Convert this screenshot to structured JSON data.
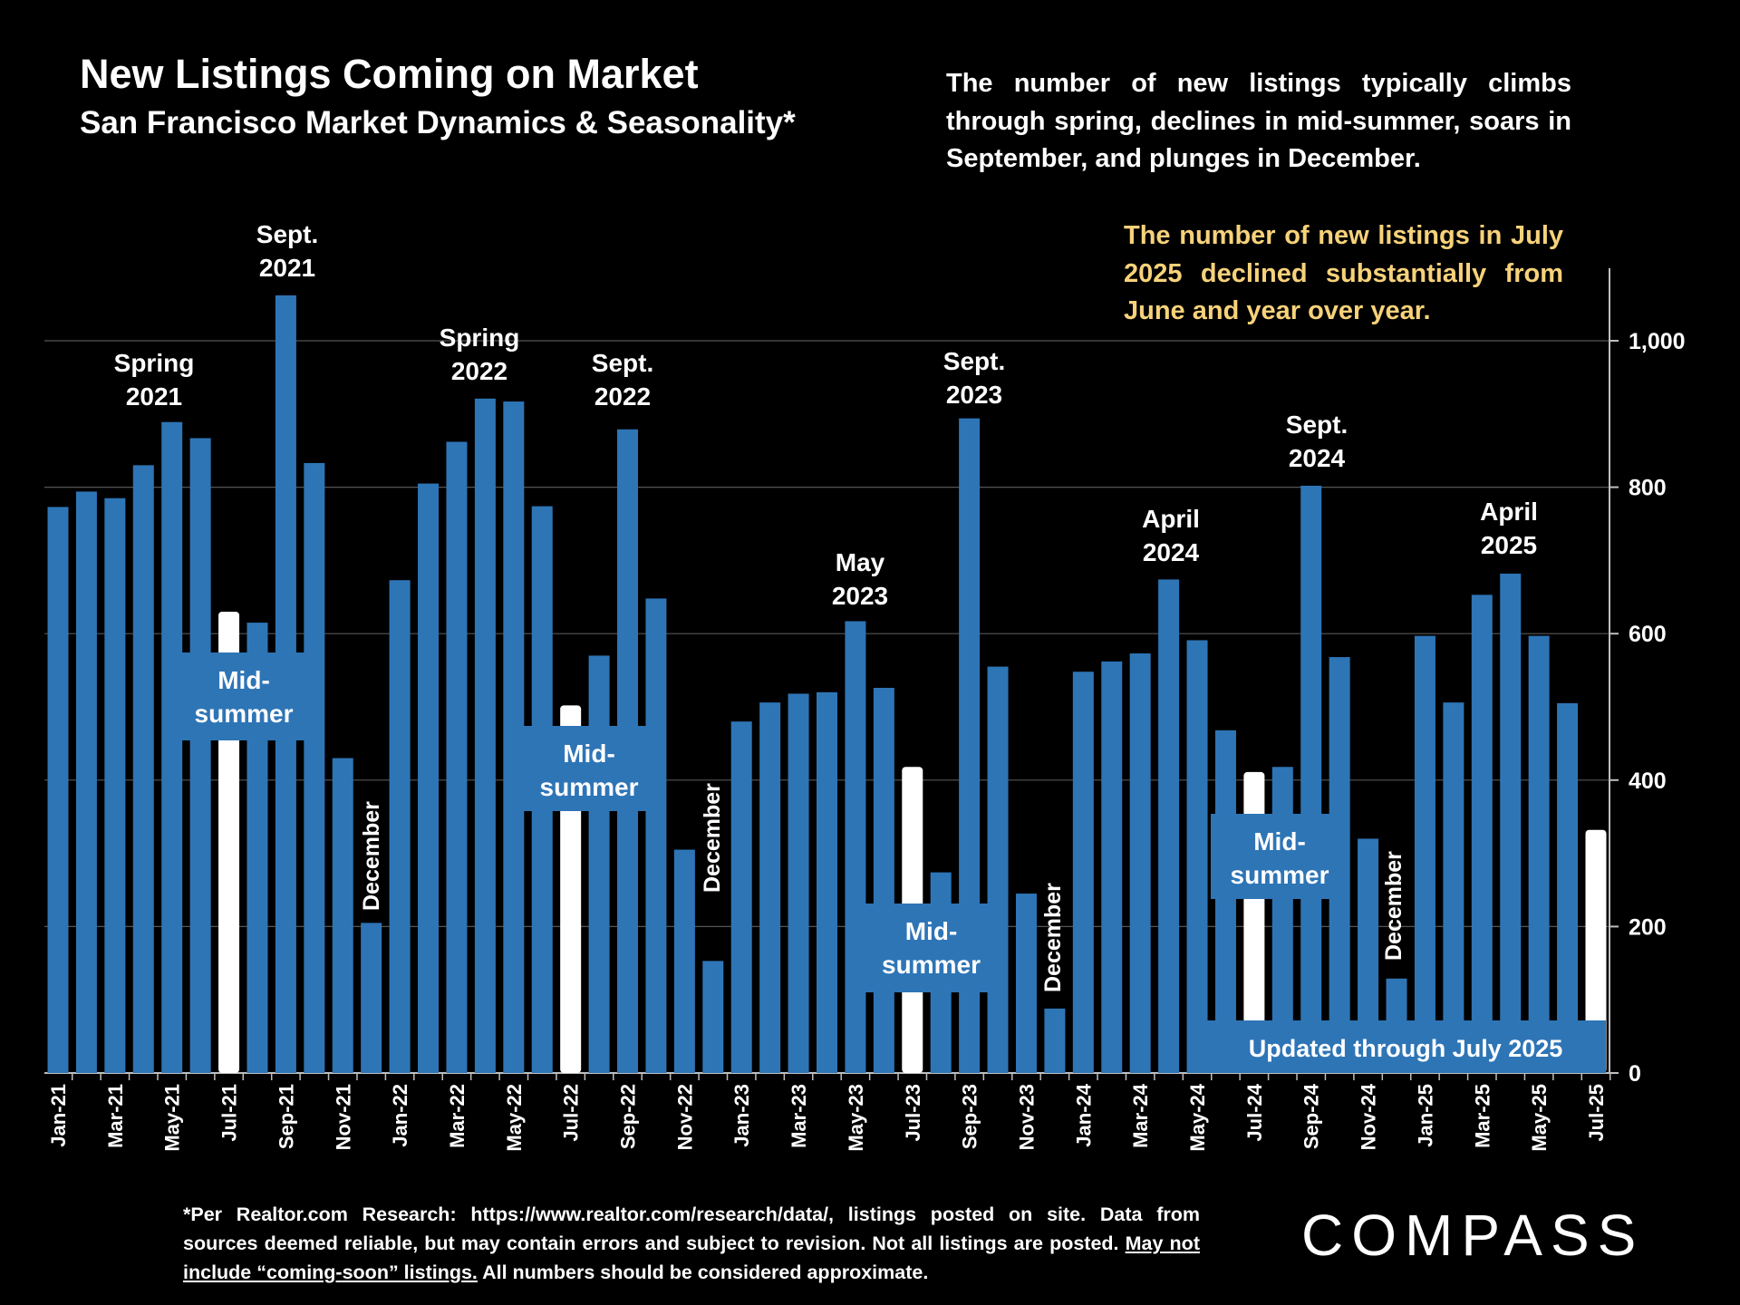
{
  "header": {
    "title": "New Listings Coming on Market",
    "subtitle": "San Francisco Market Dynamics & Seasonality*",
    "description": "The number of new listings typically climbs through spring, declines in mid-summer, soars in September, and plunges in December.",
    "highlight_note": "The number of new listings in July 2025 declined substantially from June and year over year."
  },
  "footer": {
    "text_before": "*Per Realtor.com Research:  https://www.realtor.com/research/data/, listings posted on site. Data from sources deemed reliable, but may contain errors and subject to revision. Not all listings are posted. ",
    "underlined": "May not include “coming-soon” listings.",
    "text_after": " All numbers should be considered approximate.",
    "logo": "COMPASS"
  },
  "colors": {
    "bar": "#2E75B6",
    "highlight_bar": "#FFFFFF",
    "note": "#F7D27A",
    "background": "#000000"
  },
  "chart_data": {
    "type": "bar",
    "title": "New Listings Coming on Market",
    "xlabel": "",
    "ylabel": "",
    "ylim": [
      0,
      1100
    ],
    "y_axis_position": "right",
    "y_ticks": [
      0,
      200,
      400,
      600,
      800,
      1000
    ],
    "y_tick_labels": [
      "0",
      "200",
      "400",
      "600",
      "800",
      "1,000"
    ],
    "grid": true,
    "categories": [
      "Jan-21",
      "Feb-21",
      "Mar-21",
      "Apr-21",
      "May-21",
      "Jun-21",
      "Jul-21",
      "Aug-21",
      "Sep-21",
      "Oct-21",
      "Nov-21",
      "Dec-21",
      "Jan-22",
      "Feb-22",
      "Mar-22",
      "Apr-22",
      "May-22",
      "Jun-22",
      "Jul-22",
      "Aug-22",
      "Sep-22",
      "Oct-22",
      "Nov-22",
      "Dec-22",
      "Jan-23",
      "Feb-23",
      "Mar-23",
      "Apr-23",
      "May-23",
      "Jun-23",
      "Jul-23",
      "Aug-23",
      "Sep-23",
      "Oct-23",
      "Nov-23",
      "Dec-23",
      "Jan-24",
      "Feb-24",
      "Mar-24",
      "Apr-24",
      "May-24",
      "Jun-24",
      "Jul-24",
      "Aug-24",
      "Sep-24",
      "Oct-24",
      "Nov-24",
      "Dec-24",
      "Jan-25",
      "Feb-25",
      "Mar-25",
      "Apr-25",
      "May-25",
      "Jun-25",
      "Jul-25"
    ],
    "values": [
      773,
      794,
      785,
      830,
      889,
      867,
      630,
      615,
      1062,
      833,
      430,
      205,
      673,
      805,
      862,
      921,
      917,
      774,
      502,
      570,
      879,
      648,
      305,
      153,
      480,
      506,
      518,
      520,
      617,
      526,
      418,
      274,
      894,
      555,
      245,
      88,
      548,
      562,
      573,
      674,
      591,
      468,
      411,
      418,
      802,
      568,
      320,
      129,
      597,
      506,
      653,
      682,
      597,
      505,
      332
    ],
    "highlighted": [
      "Jul-21",
      "Jul-22",
      "Jul-23",
      "Jul-24",
      "Jul-25"
    ],
    "annotations": [
      {
        "text": [
          "Spring",
          "2021"
        ]
      },
      {
        "text": [
          "Sept.",
          "2021"
        ]
      },
      {
        "text": [
          "Spring",
          "2022"
        ]
      },
      {
        "text": [
          "Sept.",
          "2022"
        ]
      },
      {
        "text": [
          "May",
          "2023"
        ]
      },
      {
        "text": [
          "Sept.",
          "2023"
        ]
      },
      {
        "text": [
          "April",
          "2024"
        ]
      },
      {
        "text": [
          "Sept.",
          "2024"
        ]
      },
      {
        "text": [
          "April",
          "2025"
        ]
      }
    ],
    "midsummer_label": [
      "Mid-",
      "summer"
    ],
    "december_label": "December",
    "updated_label": "Updated through July 2025"
  }
}
